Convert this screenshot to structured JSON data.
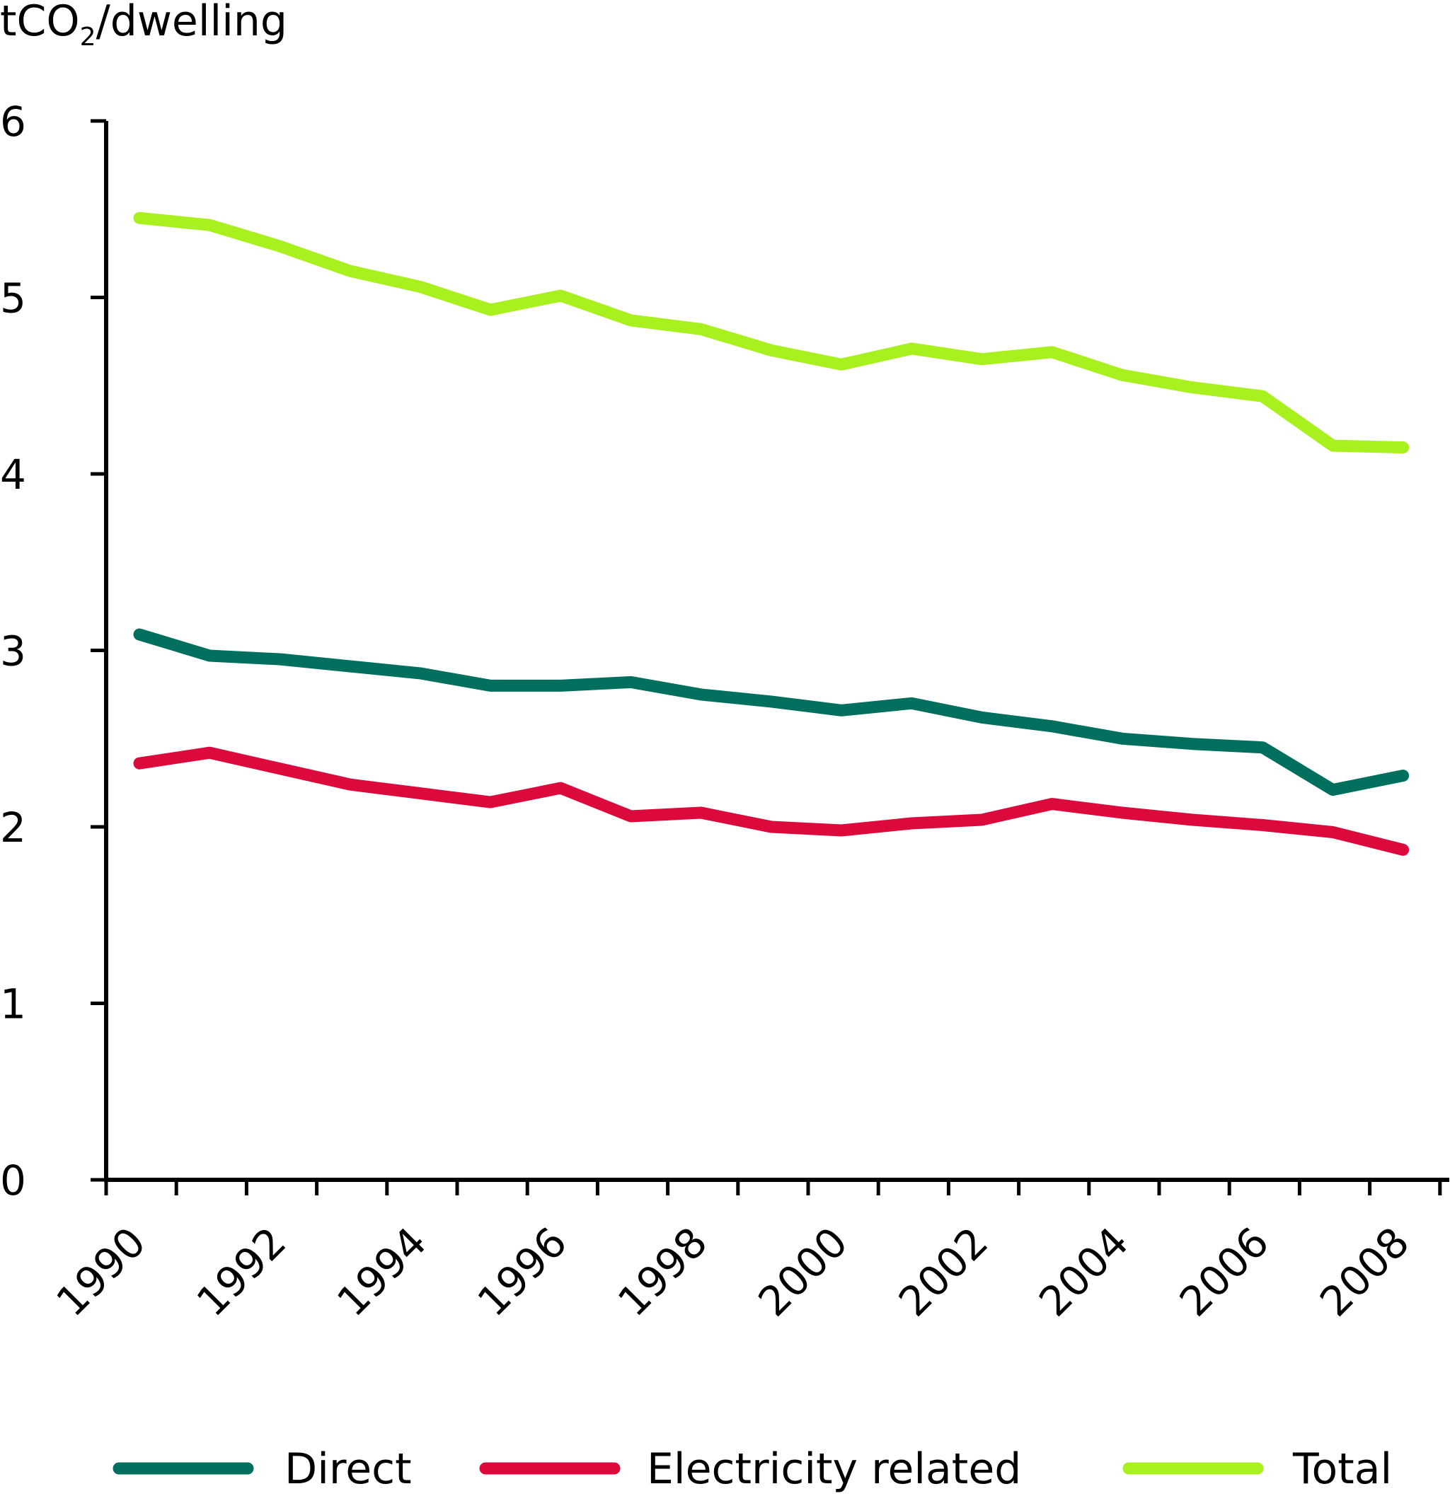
{
  "chart_data": {
    "type": "line",
    "ylabel_main": "tCO",
    "ylabel_sub": "2",
    "ylabel_rest": "/dwelling",
    "ylim": [
      0,
      6
    ],
    "yticks": [
      0,
      1,
      2,
      3,
      4,
      5,
      6
    ],
    "xlim": [
      1990,
      2008
    ],
    "xtick_labels": [
      "1990",
      "1992",
      "1994",
      "1996",
      "1998",
      "2000",
      "2002",
      "2004",
      "2006",
      "2008"
    ],
    "x": [
      1990,
      1991,
      1992,
      1993,
      1994,
      1995,
      1996,
      1997,
      1998,
      1999,
      2000,
      2001,
      2002,
      2003,
      2004,
      2005,
      2006,
      2007,
      2008
    ],
    "series": [
      {
        "name": "Direct",
        "color": "#006f5d",
        "values": [
          3.09,
          2.97,
          2.95,
          2.91,
          2.87,
          2.8,
          2.8,
          2.82,
          2.75,
          2.71,
          2.66,
          2.7,
          2.62,
          2.57,
          2.5,
          2.47,
          2.45,
          2.21,
          2.29
        ]
      },
      {
        "name": "Electricity related",
        "color": "#dc0a3c",
        "values": [
          2.36,
          2.42,
          2.33,
          2.24,
          2.19,
          2.14,
          2.22,
          2.06,
          2.08,
          2.0,
          1.98,
          2.02,
          2.04,
          2.13,
          2.08,
          2.04,
          2.01,
          1.97,
          1.87
        ]
      },
      {
        "name": "Total",
        "color": "#a8f01e",
        "values": [
          5.45,
          5.41,
          5.29,
          5.15,
          5.06,
          4.93,
          5.01,
          4.87,
          4.82,
          4.7,
          4.62,
          4.71,
          4.65,
          4.69,
          4.56,
          4.49,
          4.44,
          4.16,
          4.15
        ]
      }
    ],
    "legend_position": "bottom"
  }
}
